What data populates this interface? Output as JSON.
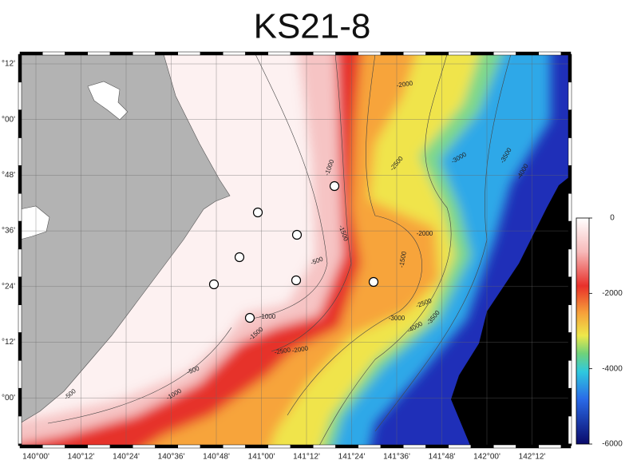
{
  "title": "KS21-8",
  "map": {
    "longitude_labels": [
      "140°00'",
      "140°12'",
      "140°24'",
      "140°36'",
      "140°48'",
      "141°00'",
      "141°12'",
      "141°24'",
      "141°36'",
      "141°48'",
      "142°00'",
      "142°12'"
    ],
    "latitude_labels": [
      "°12'",
      "°00'",
      "°48'",
      "°36'",
      "°24'",
      "°12'",
      "°00'"
    ],
    "contour_labels": [
      "-2000",
      "-1000",
      "-2500",
      "-3000",
      "-3500",
      "-4000",
      "-1500",
      "-500",
      "-2000",
      "-1500",
      "-1000",
      "-1500",
      "-2500",
      "-2000",
      "-500",
      "-1000",
      "-500",
      "-2500",
      "-3000",
      "-3500",
      "-4000"
    ],
    "colorbar": {
      "range": [
        -6000,
        0
      ],
      "ticks": [
        0,
        -2000,
        -4000,
        -6000
      ]
    }
  }
}
